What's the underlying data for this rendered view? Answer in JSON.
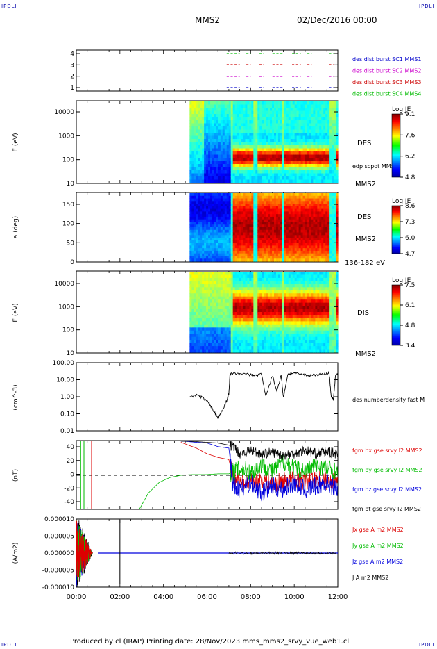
{
  "corners": {
    "tl": "IPDLI",
    "tr": "IPDLI",
    "bl": "IPDLI",
    "br": "IPDLI"
  },
  "header": {
    "spacecraft": "MMS2",
    "datetime": "02/Dec/2016 00:00"
  },
  "footer": {
    "text": "Produced by cl (IRAP)   Printing date: 28/Nov/2023   mms_mms2_srvy_vue_web1.cl"
  },
  "colors": {
    "mms1": "#0000cc",
    "mms2": "#cc00cc",
    "mms3": "#cc0000",
    "mms4": "#00bb00",
    "bx": "#dd0000",
    "by": "#00bb00",
    "bz": "#0000dd",
    "bt": "#000000",
    "spectrogram": "jet"
  },
  "x_axis": {
    "ticks": [
      "00:00",
      "02:00",
      "04:00",
      "06:00",
      "08:00",
      "10:00",
      "12:00"
    ]
  },
  "chart_data": [
    {
      "type": "scatter",
      "panel": "burst-availability",
      "yticks": [
        "4",
        "3",
        "2",
        "1"
      ],
      "legend": [
        "des dist burst SC1 MMS1",
        "des dist burst SC2 MMS2",
        "des dist burst SC3 MMS3",
        "des dist burst SC4 MMS4"
      ],
      "burst_intervals_hours": [
        [
          6.9,
          7.5
        ],
        [
          7.8,
          8.0
        ],
        [
          8.4,
          8.6
        ],
        [
          9.0,
          9.5
        ],
        [
          9.9,
          10.3
        ],
        [
          10.6,
          10.8
        ],
        [
          11.6,
          11.8
        ]
      ]
    },
    {
      "type": "heatmap",
      "panel": "des-energy",
      "ylabel": "E (eV)",
      "yticks": [
        "10000",
        "1000",
        "100",
        "10"
      ],
      "instrument": "DES",
      "spacecraft": "MMS2",
      "overlay": "edp scpot MMS2",
      "colorbar": {
        "title": "Log JE",
        "ticks": [
          "9.1",
          "7.6",
          "6.2",
          "4.8"
        ]
      },
      "log_y": true,
      "data_start_hour": 5.2
    },
    {
      "type": "heatmap",
      "panel": "des-pitch",
      "ylabel": "a (deg)",
      "yticks": [
        "150",
        "100",
        "50",
        "0"
      ],
      "instrument": "DES",
      "spacecraft": "MMS2",
      "energy_range": "136-182 eV",
      "colorbar": {
        "title": "Log JE",
        "ticks": [
          "8.6",
          "7.3",
          "6.0",
          "4.7"
        ]
      },
      "data_start_hour": 5.2
    },
    {
      "type": "heatmap",
      "panel": "dis-energy",
      "ylabel": "E (eV)",
      "yticks": [
        "10000",
        "1000",
        "100",
        "10"
      ],
      "instrument": "DIS",
      "spacecraft": "MMS2",
      "colorbar": {
        "title": "Log JE",
        "ticks": [
          "7.5",
          "6.1",
          "4.8",
          "3.4"
        ]
      },
      "log_y": true,
      "data_start_hour": 5.2
    },
    {
      "type": "line",
      "panel": "density",
      "ylabel": "(cm^-3)",
      "yticks": [
        "100.00",
        "10.00",
        "1.00",
        "0.10",
        "0.01"
      ],
      "log_y": true,
      "series": [
        {
          "name": "des numberdensity fast M",
          "x": [
            5.2,
            5.6,
            5.9,
            6.1,
            6.3,
            6.5,
            6.6,
            6.8,
            6.9,
            7.0,
            7.05,
            7.2,
            7.5,
            8.0,
            8.2,
            8.5,
            8.7,
            9.0,
            9.2,
            9.4,
            9.5,
            9.7,
            9.9,
            10.2,
            10.6,
            11.0,
            11.4,
            11.6,
            11.7,
            11.8,
            11.9,
            12.0
          ],
          "y": [
            0.9,
            1.3,
            0.7,
            0.4,
            0.15,
            0.06,
            0.09,
            0.3,
            0.6,
            1.5,
            20,
            25,
            22,
            20,
            18,
            22,
            1,
            18,
            2,
            20,
            0.9,
            20,
            25,
            22,
            18,
            20,
            22,
            25,
            1,
            0.7,
            20,
            22
          ]
        }
      ]
    },
    {
      "type": "line",
      "panel": "magnetic-field",
      "ylabel": "(nT)",
      "yticks": [
        "40",
        "20",
        "0",
        "-20",
        "-40"
      ],
      "ylim": [
        -47,
        47
      ],
      "series": [
        {
          "name": "fgm bx gse srvy l2 MMS2",
          "x": [
            4.8,
            5.5,
            6.0,
            6.5,
            7.0,
            7.2,
            7.5,
            8.0,
            8.5,
            9.0,
            9.5,
            10.0,
            10.5,
            11.0,
            11.5,
            12.0
          ],
          "y": [
            46,
            38,
            30,
            25,
            22,
            -5,
            -8,
            -10,
            -5,
            -12,
            -8,
            -5,
            -10,
            -3,
            -8,
            -5
          ]
        },
        {
          "name": "fgm by gse srvy l2 MMS2",
          "x": [
            2.9,
            3.3,
            3.8,
            4.3,
            4.8,
            5.3,
            6.0,
            6.5,
            7.0,
            7.2,
            7.6,
            8.0,
            8.5,
            9.0,
            9.5,
            10.0,
            10.5,
            11.0,
            11.5,
            12.0
          ],
          "y": [
            -47,
            -25,
            -10,
            -3,
            0,
            1,
            1,
            2,
            2,
            5,
            10,
            3,
            15,
            5,
            20,
            10,
            5,
            15,
            10,
            5
          ]
        },
        {
          "name": "fgm bz gse srvy l2 MMS2",
          "x": [
            4.8,
            5.5,
            6.0,
            6.5,
            7.0,
            7.2,
            7.5,
            8.0,
            8.5,
            9.0,
            9.5,
            10.0,
            10.5,
            11.0,
            11.5,
            12.0
          ],
          "y": [
            48,
            46,
            45,
            40,
            38,
            -15,
            -20,
            -10,
            -25,
            -15,
            -20,
            -10,
            -20,
            -15,
            -10,
            -20
          ]
        },
        {
          "name": "fgm bt gse srvy l2 MMS2",
          "x": [
            4.8,
            5.5,
            6.0,
            6.5,
            7.0,
            7.2,
            7.5,
            8.0,
            8.5,
            9.0,
            9.5,
            10.0,
            10.5,
            11.0,
            11.5,
            12.0
          ],
          "y": [
            48,
            47,
            46,
            45,
            42,
            40,
            30,
            35,
            30,
            32,
            28,
            30,
            35,
            30,
            33,
            30
          ]
        }
      ]
    },
    {
      "type": "line",
      "panel": "current-density",
      "ylabel": "(A/m2)",
      "yticks": [
        "0.000010",
        "0.000005",
        "0.000000",
        "-0.000005",
        "-0.000010"
      ],
      "ylim": [
        -1e-05,
        1e-05
      ],
      "series": [
        {
          "name": "Jx gse A m2 MMS2"
        },
        {
          "name": "Jy gse A m2 MMS2"
        },
        {
          "name": "Jz gse A m2 MMS2"
        },
        {
          "name": "J A m2 MMS2"
        }
      ]
    }
  ]
}
